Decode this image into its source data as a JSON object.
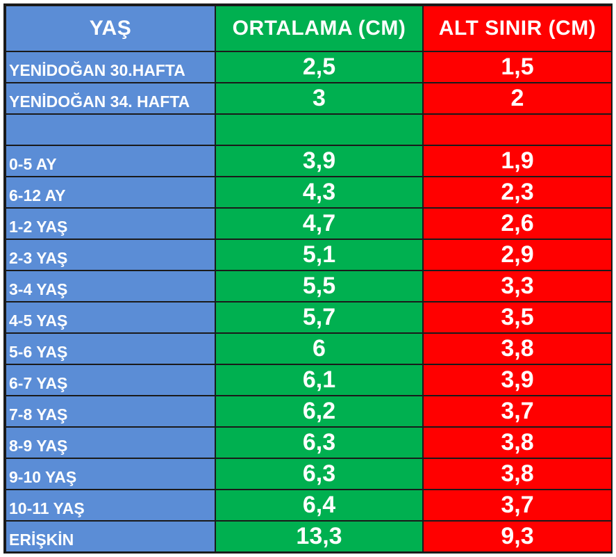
{
  "table": {
    "headers": {
      "age": "YAŞ",
      "average": "ORTALAMA (CM)",
      "lower_limit": "ALT SINIR (CM)"
    },
    "rows": [
      {
        "age": "YENİDOĞAN 30.HAFTA",
        "average": "2,5",
        "lower_limit": "1,5"
      },
      {
        "age": "YENİDOĞAN 34. HAFTA",
        "average": "3",
        "lower_limit": "2"
      },
      {
        "age": "",
        "average": "",
        "lower_limit": ""
      },
      {
        "age": "0-5 AY",
        "average": "3,9",
        "lower_limit": "1,9"
      },
      {
        "age": "6-12 AY",
        "average": "4,3",
        "lower_limit": "2,3"
      },
      {
        "age": "1-2 YAŞ",
        "average": "4,7",
        "lower_limit": "2,6"
      },
      {
        "age": "2-3 YAŞ",
        "average": "5,1",
        "lower_limit": "2,9"
      },
      {
        "age": "3-4 YAŞ",
        "average": "5,5",
        "lower_limit": "3,3"
      },
      {
        "age": "4-5 YAŞ",
        "average": "5,7",
        "lower_limit": "3,5"
      },
      {
        "age": "5-6 YAŞ",
        "average": "6",
        "lower_limit": "3,8"
      },
      {
        "age": "6-7 YAŞ",
        "average": "6,1",
        "lower_limit": "3,9"
      },
      {
        "age": "7-8 YAŞ",
        "average": "6,2",
        "lower_limit": "3,7"
      },
      {
        "age": "8-9 YAŞ",
        "average": "6,3",
        "lower_limit": "3,8"
      },
      {
        "age": "9-10 YAŞ",
        "average": "6,3",
        "lower_limit": "3,8"
      },
      {
        "age": "10-11 YAŞ",
        "average": "6,4",
        "lower_limit": "3,7"
      },
      {
        "age": "ERİŞKİN",
        "average": "13,3",
        "lower_limit": "9,3"
      }
    ]
  },
  "colors": {
    "age_column": "#5b8dd6",
    "average_column": "#00b050",
    "lower_limit_column": "#ff0000",
    "text": "#ffffff",
    "grid": "#1a1a1a"
  }
}
